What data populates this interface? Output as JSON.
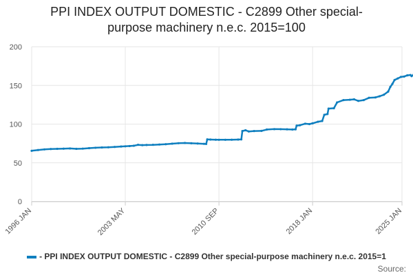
{
  "chart_data": {
    "type": "line",
    "title_line1": "PPI INDEX OUTPUT DOMESTIC - C2899 Other special-",
    "title_line2": "purpose machinery n.e.c. 2015=100",
    "legend": "- PPI INDEX OUTPUT DOMESTIC - C2899 Other special-purpose machinery n.e.c. 2015=1",
    "source_label": "Source:",
    "color": "#0f7fbf",
    "ylim": [
      0,
      200
    ],
    "yticks": [
      0,
      50,
      100,
      150,
      200
    ],
    "xlim": [
      "1996-01",
      "2025-01"
    ],
    "xticks": [
      "1996 JAN",
      "2003 MAY",
      "2010 SEP",
      "2018 JAN",
      "2025 JAN"
    ],
    "grid": true,
    "series": [
      {
        "points": [
          [
            "1996-01",
            65.5
          ],
          [
            "1996-07",
            66.5
          ],
          [
            "1997-01",
            67.3
          ],
          [
            "1997-07",
            67.8
          ],
          [
            "1998-01",
            68.0
          ],
          [
            "1998-07",
            68.2
          ],
          [
            "1999-01",
            68.5
          ],
          [
            "1999-07",
            68.0
          ],
          [
            "2000-01",
            68.3
          ],
          [
            "2000-07",
            68.9
          ],
          [
            "2001-01",
            69.4
          ],
          [
            "2001-07",
            69.8
          ],
          [
            "2002-01",
            70.0
          ],
          [
            "2002-07",
            70.5
          ],
          [
            "2003-01",
            71.0
          ],
          [
            "2003-05",
            71.3
          ],
          [
            "2003-09",
            71.6
          ],
          [
            "2004-01",
            72.0
          ],
          [
            "2004-05",
            73.2
          ],
          [
            "2004-09",
            72.8
          ],
          [
            "2005-01",
            73.0
          ],
          [
            "2005-07",
            73.2
          ],
          [
            "2006-01",
            73.6
          ],
          [
            "2006-07",
            74.0
          ],
          [
            "2007-01",
            74.7
          ],
          [
            "2007-07",
            75.3
          ],
          [
            "2008-01",
            75.6
          ],
          [
            "2008-07",
            75.2
          ],
          [
            "2009-01",
            74.9
          ],
          [
            "2009-07",
            74.5
          ],
          [
            "2009-09",
            74.3
          ],
          [
            "2009-10",
            80.2
          ],
          [
            "2010-01",
            80.0
          ],
          [
            "2010-06",
            79.8
          ],
          [
            "2010-09",
            79.7
          ],
          [
            "2011-03",
            79.7
          ],
          [
            "2011-09",
            79.8
          ],
          [
            "2012-03",
            80.0
          ],
          [
            "2012-06",
            80.2
          ],
          [
            "2012-07",
            91.0
          ],
          [
            "2012-10",
            92.0
          ],
          [
            "2013-01",
            90.5
          ],
          [
            "2013-06",
            91.0
          ],
          [
            "2014-01",
            91.2
          ],
          [
            "2014-06",
            93.0
          ],
          [
            "2015-01",
            93.5
          ],
          [
            "2015-07",
            93.4
          ],
          [
            "2016-01",
            93.2
          ],
          [
            "2016-06",
            93.0
          ],
          [
            "2016-09",
            93.2
          ],
          [
            "2016-10",
            98.0
          ],
          [
            "2017-01",
            98.5
          ],
          [
            "2017-06",
            100.5
          ],
          [
            "2017-10",
            100.0
          ],
          [
            "2018-01",
            101.0
          ],
          [
            "2018-06",
            103.0
          ],
          [
            "2018-10",
            104.0
          ],
          [
            "2018-12",
            112.0
          ],
          [
            "2019-03",
            113.0
          ],
          [
            "2019-04",
            120.0
          ],
          [
            "2019-09",
            120.5
          ],
          [
            "2019-12",
            128.0
          ],
          [
            "2020-06",
            131.0
          ],
          [
            "2020-12",
            131.5
          ],
          [
            "2021-04",
            132.0
          ],
          [
            "2021-08",
            130.0
          ],
          [
            "2022-01",
            131.0
          ],
          [
            "2022-06",
            134.0
          ],
          [
            "2022-12",
            134.5
          ],
          [
            "2023-04",
            136.0
          ],
          [
            "2023-08",
            138.0
          ],
          [
            "2023-12",
            142.0
          ],
          [
            "2024-02",
            148.0
          ],
          [
            "2024-04",
            152.0
          ],
          [
            "2024-06",
            157.0
          ],
          [
            "2024-09",
            159.0
          ],
          [
            "2024-12",
            161.0
          ],
          [
            "2025-03",
            161.5
          ],
          [
            "2025-06",
            163.0
          ],
          [
            "2025-09",
            163.5
          ],
          [
            "2025-10",
            162.0
          ],
          [
            "2025-12",
            164.0
          ]
        ]
      }
    ]
  }
}
